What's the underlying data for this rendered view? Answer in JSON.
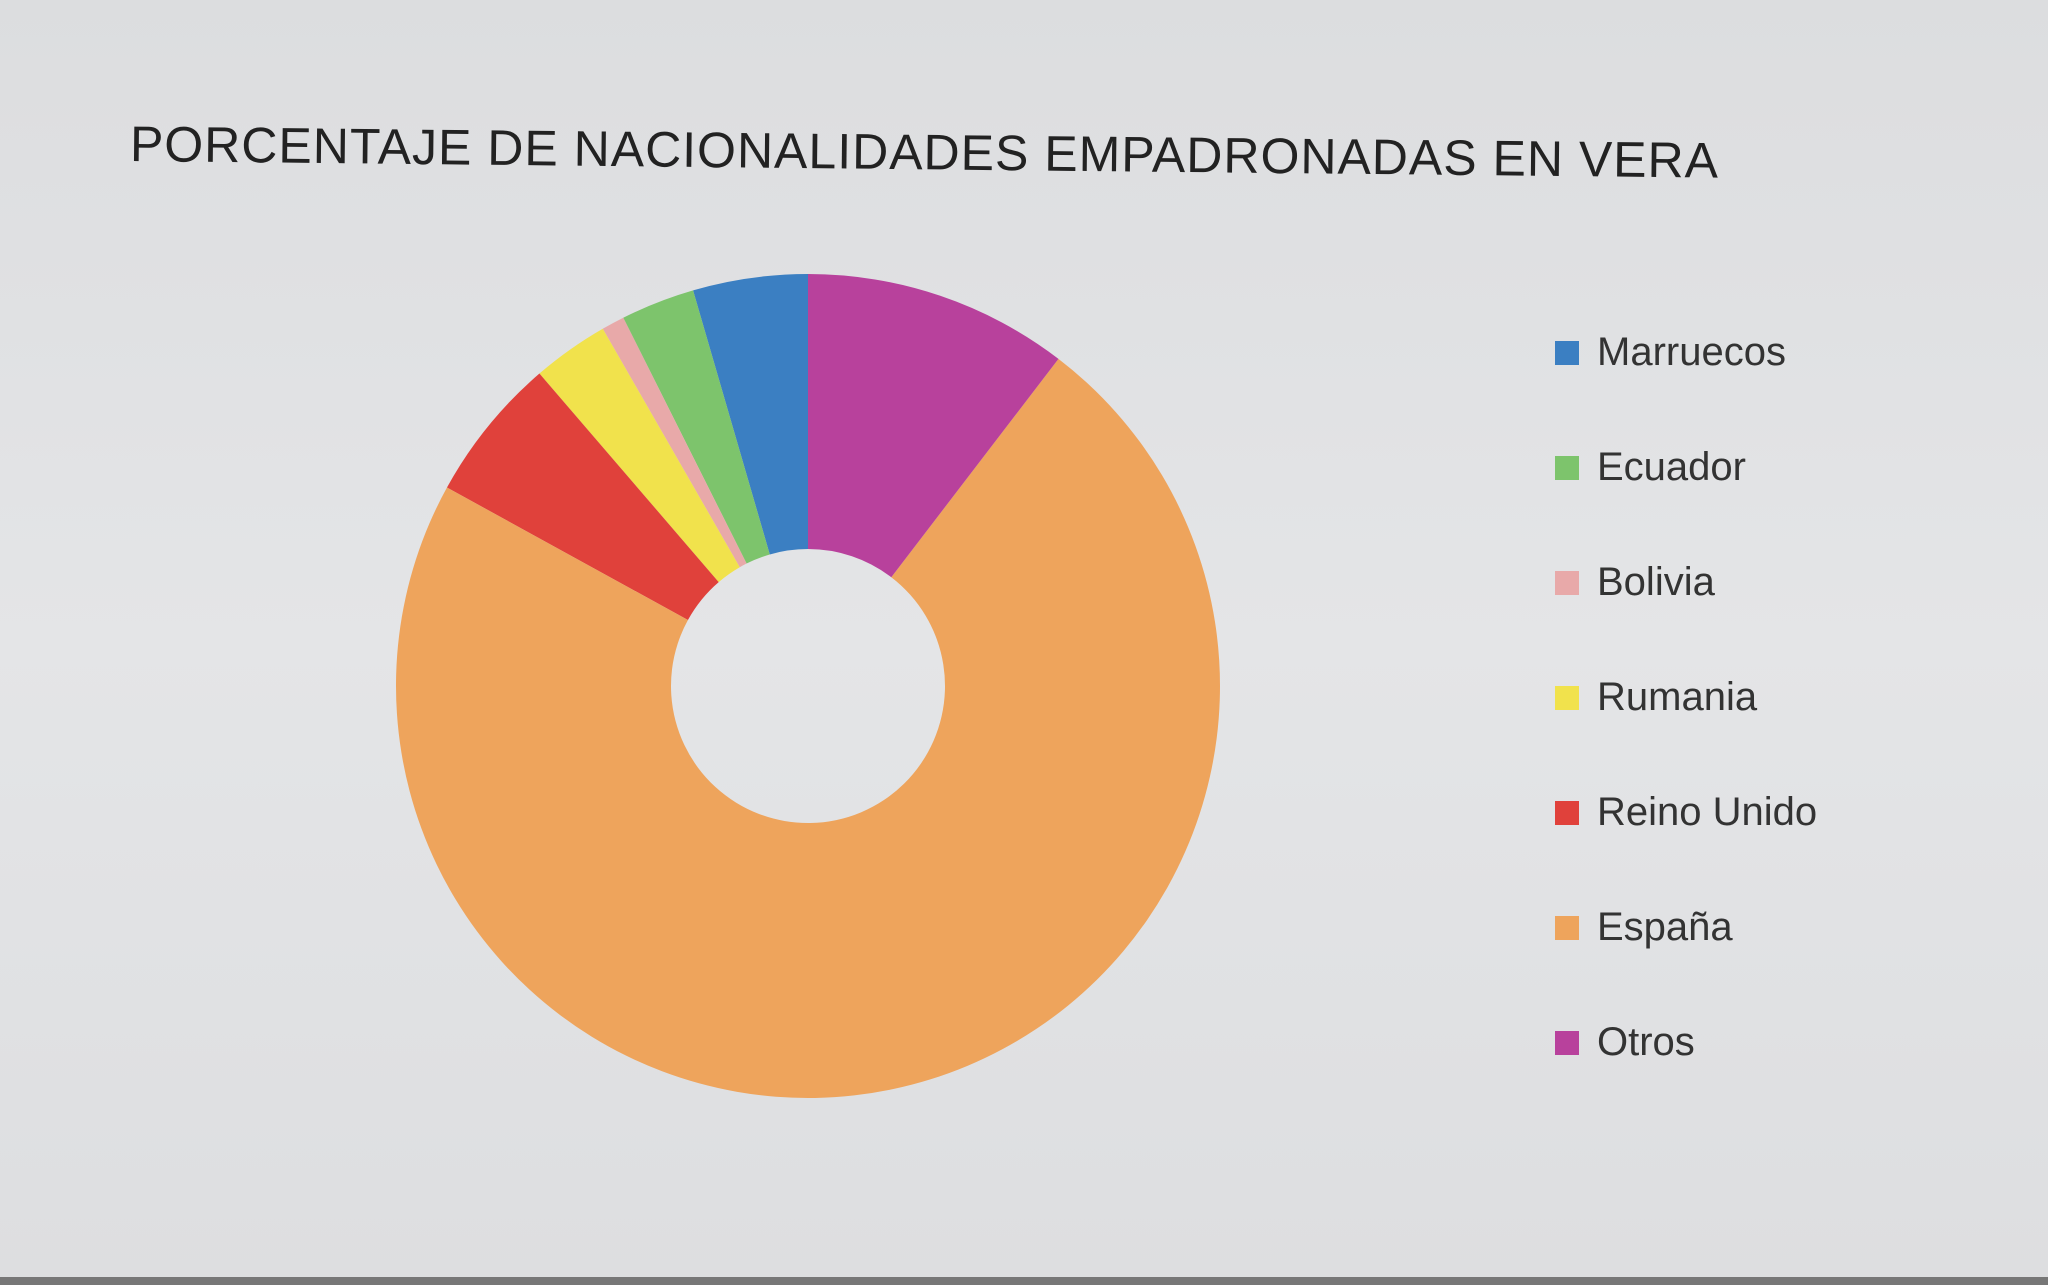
{
  "chart_data": {
    "type": "pie",
    "donut": true,
    "title": "PORCENTAJE DE NACIONALIDADES EMPADRONADAS EN VERA",
    "categories": [
      "Marruecos",
      "Ecuador",
      "Bolivia",
      "Rumania",
      "Reino Unido",
      "España",
      "Otros"
    ],
    "values": [
      4.5,
      2.9,
      0.9,
      3.0,
      5.7,
      72.6,
      10.4
    ],
    "colors": [
      "#3b7fc2",
      "#7dc46c",
      "#e8a9a9",
      "#f1e24c",
      "#e0413b",
      "#eea45c",
      "#b8419c"
    ],
    "legend_position": "right"
  }
}
